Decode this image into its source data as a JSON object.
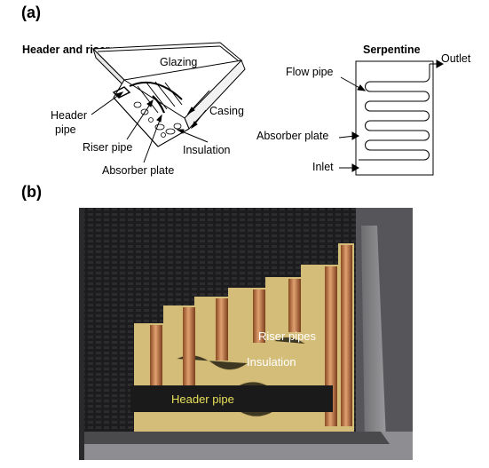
{
  "panel_a": {
    "label": "(a)",
    "header_riser": {
      "title": "Header and riser",
      "labels": {
        "glazing": "Glazing",
        "header_pipe_1": "Header",
        "header_pipe_2": "pipe",
        "casing": "Casing",
        "riser_pipe": "Riser pipe",
        "insulation": "Insulation",
        "absorber_plate": "Absorber plate"
      }
    },
    "serpentine": {
      "title": "Serpentine",
      "labels": {
        "outlet": "Outlet",
        "flow_pipe": "Flow pipe",
        "absorber_plate": "Absorber plate",
        "inlet": "Inlet"
      }
    }
  },
  "panel_b": {
    "label": "(b)",
    "labels": {
      "riser_pipes": "Riser pipes",
      "insulation": "Insulation",
      "header_pipe": "Header pipe"
    }
  },
  "colors": {
    "photo_dark": "#2a2a2c",
    "insulation_yellow": "#d8c27a",
    "copper": "#b8703a",
    "header_label": "#e8e05a"
  }
}
